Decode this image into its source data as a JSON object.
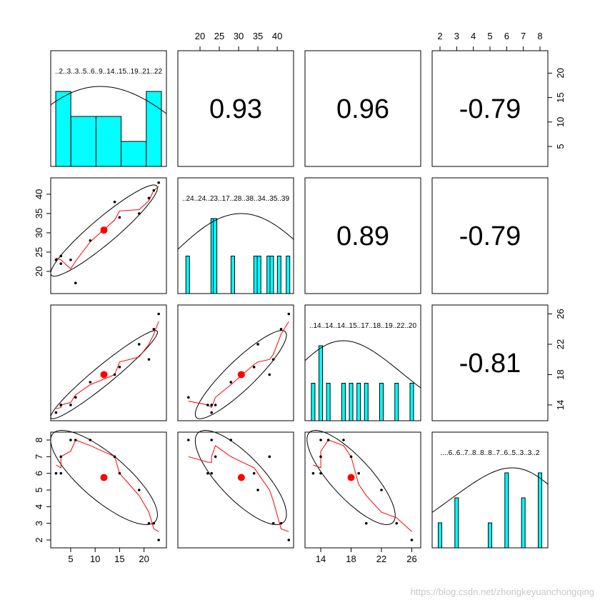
{
  "chart_data": {
    "type": "scatter",
    "variables": [
      {
        "name": "",
        "ticks": [
          5,
          10,
          15,
          20
        ],
        "range": [
          1.5,
          24
        ],
        "hist_bins": [
          [
            2,
            5
          ],
          [
            5,
            10
          ],
          [
            10,
            15
          ],
          [
            15,
            20
          ],
          [
            20,
            23
          ]
        ],
        "hist_counts": [
          3,
          2,
          2,
          1,
          3
        ],
        "rug_labels": "..2..3..3..5..6..9..14..15..19..21..22"
      },
      {
        "name": "",
        "ticks": [
          20,
          25,
          30,
          35,
          40
        ],
        "range": [
          15,
          43.5
        ],
        "hist_bars": [
          [
            16.8,
            1
          ],
          [
            23.3,
            2
          ],
          [
            23.9,
            2
          ],
          [
            28.5,
            1
          ],
          [
            34.4,
            1
          ],
          [
            35.3,
            1
          ],
          [
            37.8,
            1
          ],
          [
            38.6,
            1
          ],
          [
            40.5,
            1
          ],
          [
            42.8,
            1
          ]
        ],
        "rug_labels": "..24..24..23..17..28..38..34..35..39"
      },
      {
        "name": "",
        "ticks": [
          14,
          18,
          22,
          26
        ],
        "range": [
          12.3,
          26.8
        ],
        "hist_bars": [
          [
            13,
            1
          ],
          [
            14,
            2
          ],
          [
            15,
            1
          ],
          [
            17,
            1
          ],
          [
            18,
            1
          ],
          [
            19,
            1
          ],
          [
            20,
            1
          ],
          [
            22,
            1
          ],
          [
            24,
            1
          ],
          [
            26,
            1
          ]
        ],
        "rug_labels": "..14..14..14..15..17..18..19..22..20"
      },
      {
        "name": "",
        "ticks": [
          2,
          3,
          4,
          5,
          6,
          7,
          8
        ],
        "range": [
          1.7,
          8.3
        ],
        "hist_bars": [
          [
            2,
            1
          ],
          [
            3,
            2
          ],
          [
            5,
            1
          ],
          [
            6,
            3
          ],
          [
            7,
            2
          ],
          [
            8,
            3
          ]
        ],
        "rug_labels": "....6..6..7..8..8..8..7..6..5..3..3..2"
      }
    ],
    "observations": [
      [
        2,
        23,
        13,
        6
      ],
      [
        3,
        24,
        14,
        7
      ],
      [
        3,
        22,
        14,
        6
      ],
      [
        5,
        23,
        14,
        8
      ],
      [
        6,
        17,
        15,
        8
      ],
      [
        9,
        28,
        17,
        8
      ],
      [
        14,
        38,
        18,
        7
      ],
      [
        15,
        34,
        19,
        6
      ],
      [
        19,
        35,
        22,
        5
      ],
      [
        21,
        39,
        20,
        3
      ],
      [
        22,
        41,
        24,
        3
      ],
      [
        23,
        43,
        26,
        2
      ]
    ],
    "means": [
      11.8,
      30.7,
      18.0,
      5.75
    ],
    "correlations": [
      [
        "0.93",
        "0.96",
        "-0.79"
      ],
      [
        "0.89",
        "-0.79"
      ],
      [
        "-0.81"
      ]
    ],
    "density_curve": true,
    "ellipses": true,
    "loess_smooth": true,
    "colors": {
      "hist_fill": "#00FFFF",
      "smooth_line": "#FF0000",
      "mean_point": "#FF0000",
      "points": "#000000",
      "panel_border": "#000000"
    }
  },
  "watermark": "https://blog.csdn.net/zhongkeyuanchongqing"
}
